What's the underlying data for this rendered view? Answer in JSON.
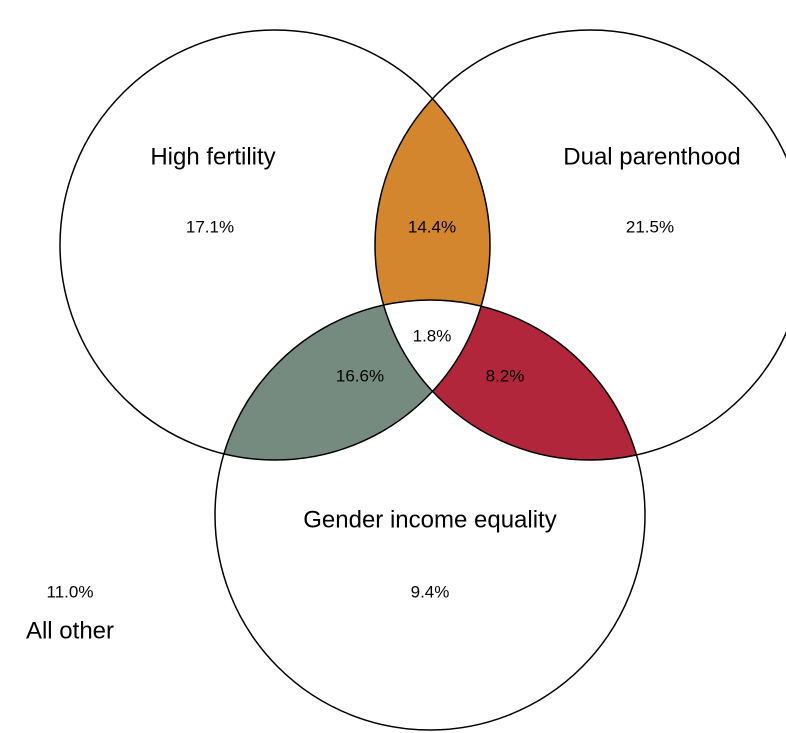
{
  "chart_data": {
    "type": "venn",
    "sets": [
      "High fertility",
      "Dual parenthood",
      "Gender income equality"
    ],
    "regions": [
      [
        0
      ],
      [
        1
      ],
      [
        2
      ],
      [
        0,
        1
      ],
      [
        0,
        2
      ],
      [
        1,
        2
      ],
      [
        0,
        1,
        2
      ]
    ],
    "values": [
      17.1,
      21.5,
      9.4,
      14.4,
      16.6,
      8.2,
      1.8
    ],
    "value_labels": [
      "17.1%",
      "21.5%",
      "9.4%",
      "14.4%",
      "16.6%",
      "8.2%",
      "1.8%"
    ],
    "colors": [
      "#ffffff",
      "#ffffff",
      "#ffffff",
      "#d4862f",
      "#768b80",
      "#b1263a",
      "#ffffff"
    ],
    "other_label": "All other",
    "other_value": 11.0,
    "other_value_label": "11.0%"
  }
}
